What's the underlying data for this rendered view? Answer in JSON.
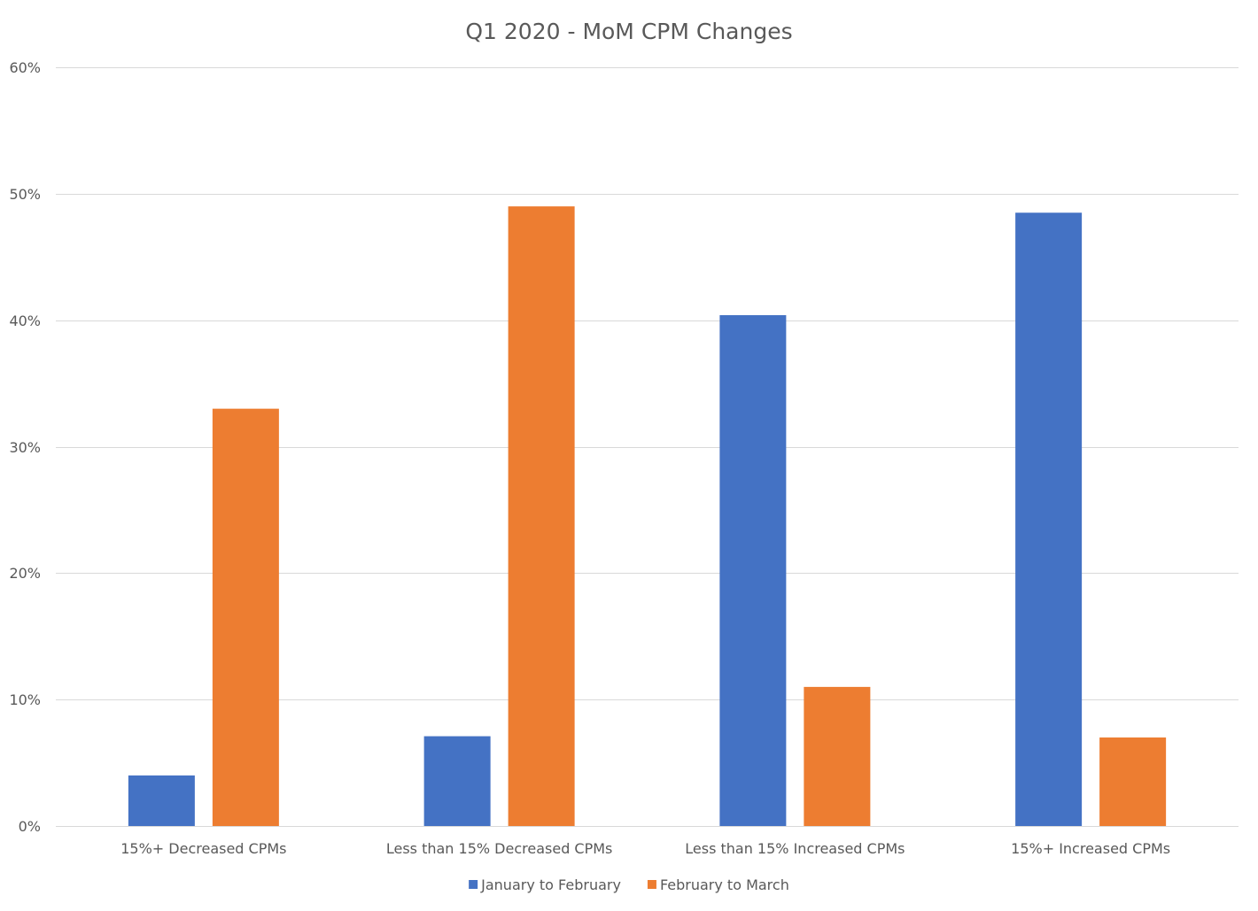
{
  "chart_data": {
    "type": "bar",
    "title": "Q1 2020 - MoM CPM Changes",
    "xlabel": "",
    "ylabel": "",
    "ylim": [
      0,
      60
    ],
    "yticks": [
      0,
      10,
      20,
      30,
      40,
      50,
      60
    ],
    "ytick_labels": [
      "0%",
      "10%",
      "20%",
      "30%",
      "40%",
      "50%",
      "60%"
    ],
    "grid": true,
    "legend_position": "bottom",
    "categories": [
      "15%+ Decreased CPMs",
      "Less than 15% Decreased CPMs",
      "Less than 15% Increased CPMs",
      "15%+ Increased CPMs"
    ],
    "series": [
      {
        "name": "January to February",
        "color": "#4472c4",
        "values": [
          4,
          7.1,
          40.4,
          48.5
        ]
      },
      {
        "name": "February to March",
        "color": "#ed7d31",
        "values": [
          33,
          49,
          11,
          7
        ]
      }
    ]
  }
}
